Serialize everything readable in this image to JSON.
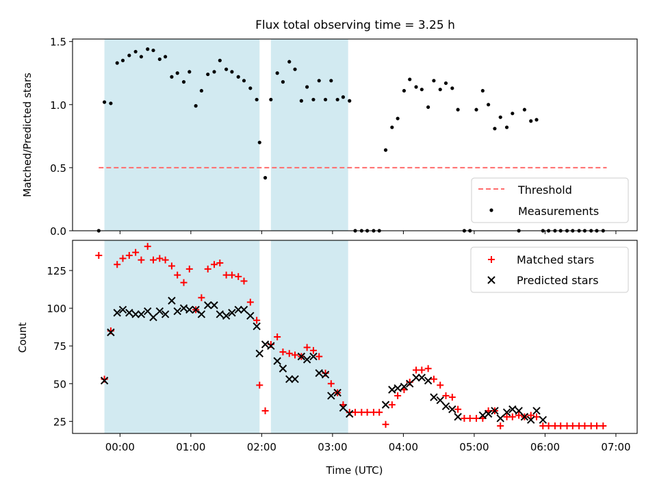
{
  "title": "Flux total observing time = 3.25 h",
  "colors": {
    "shade": "#add8e6",
    "threshold": "#ff6b6b",
    "matched": "#ff0000",
    "predicted": "#000000",
    "measurement": "#000000"
  },
  "chart_data": [
    {
      "type": "scatter",
      "ylabel": "Matched/Predicted stars",
      "xlim": [
        -0.67,
        7.3
      ],
      "ylim": [
        0,
        1.52
      ],
      "yticks": [
        0.0,
        0.5,
        1.0,
        1.5
      ],
      "ytick_labels": [
        "0.0",
        "0.5",
        "1.0",
        "1.5"
      ],
      "shaded_intervals": [
        [
          -0.22,
          1.97
        ],
        [
          2.13,
          3.22
        ]
      ],
      "threshold": {
        "name": "Threshold",
        "value": 0.5,
        "x_range": [
          -0.3,
          6.87
        ]
      },
      "legend": {
        "placement": "lower-right",
        "entries": [
          "Threshold",
          "Measurements"
        ]
      },
      "series": [
        {
          "name": "Measurements",
          "x": [
            -0.3,
            -0.22,
            -0.13,
            -0.04,
            0.04,
            0.13,
            0.22,
            0.3,
            0.39,
            0.47,
            0.56,
            0.64,
            0.73,
            0.81,
            0.9,
            0.98,
            1.07,
            1.15,
            1.24,
            1.33,
            1.41,
            1.5,
            1.58,
            1.67,
            1.75,
            1.84,
            1.93,
            1.97,
            2.05,
            2.13,
            2.22,
            2.3,
            2.39,
            2.47,
            2.56,
            2.64,
            2.73,
            2.81,
            2.9,
            2.98,
            3.07,
            3.15,
            3.24,
            3.32,
            3.41,
            3.49,
            3.58,
            3.66,
            3.75,
            3.84,
            3.92,
            4.01,
            4.09,
            4.18,
            4.26,
            4.35,
            4.43,
            4.52,
            4.6,
            4.69,
            4.77,
            4.86,
            4.94,
            5.03,
            5.12,
            5.2,
            5.29,
            5.37,
            5.46,
            5.54,
            5.63,
            5.71,
            5.8,
            5.88,
            5.97,
            6.05,
            6.14,
            6.22,
            6.31,
            6.39,
            6.48,
            6.56,
            6.65,
            6.73,
            6.82
          ],
          "values": [
            0.0,
            1.02,
            1.01,
            1.33,
            1.35,
            1.39,
            1.42,
            1.38,
            1.44,
            1.43,
            1.36,
            1.38,
            1.22,
            1.25,
            1.18,
            1.26,
            0.99,
            1.11,
            1.24,
            1.26,
            1.35,
            1.28,
            1.26,
            1.22,
            1.19,
            1.13,
            1.04,
            0.7,
            0.42,
            1.04,
            1.25,
            1.18,
            1.34,
            1.28,
            1.03,
            1.14,
            1.04,
            1.19,
            1.04,
            1.19,
            1.04,
            1.06,
            1.03,
            0.0,
            0.0,
            0.0,
            0.0,
            0.0,
            0.64,
            0.82,
            0.89,
            1.11,
            1.2,
            1.14,
            1.12,
            0.98,
            1.19,
            1.12,
            1.17,
            1.13,
            0.96,
            0.0,
            0.0,
            0.96,
            1.11,
            1.0,
            0.81,
            0.9,
            0.82,
            0.93,
            0.0,
            0.96,
            0.87,
            0.88,
            0.0,
            0.0,
            0.0,
            0.0,
            0.0,
            0.0,
            0.0,
            0.0,
            0.0,
            0.0,
            0.0
          ]
        }
      ]
    },
    {
      "type": "scatter",
      "xlabel": "Time (UTC)",
      "ylabel": "Count",
      "xlim": [
        -0.67,
        7.3
      ],
      "ylim": [
        17,
        145
      ],
      "yticks": [
        25,
        50,
        75,
        100,
        125
      ],
      "xtick_values": [
        0,
        1,
        2,
        3,
        4,
        5,
        6,
        7
      ],
      "xtick_labels": [
        "00:00",
        "01:00",
        "02:00",
        "03:00",
        "04:00",
        "05:00",
        "06:00",
        "07:00"
      ],
      "shaded_intervals": [
        [
          -0.22,
          1.97
        ],
        [
          2.13,
          3.22
        ]
      ],
      "legend": {
        "placement": "upper-right",
        "entries": [
          "Matched stars",
          "Predicted stars"
        ]
      },
      "series": [
        {
          "name": "Matched stars",
          "x": [
            -0.3,
            -0.22,
            -0.13,
            -0.04,
            0.04,
            0.13,
            0.22,
            0.3,
            0.39,
            0.47,
            0.56,
            0.64,
            0.73,
            0.81,
            0.9,
            0.98,
            1.07,
            1.15,
            1.24,
            1.33,
            1.41,
            1.5,
            1.58,
            1.67,
            1.75,
            1.84,
            1.93,
            1.97,
            2.05,
            2.13,
            2.22,
            2.3,
            2.39,
            2.47,
            2.56,
            2.64,
            2.73,
            2.81,
            2.9,
            2.98,
            3.07,
            3.15,
            3.24,
            3.32,
            3.41,
            3.49,
            3.58,
            3.66,
            3.75,
            3.84,
            3.92,
            4.01,
            4.09,
            4.18,
            4.26,
            4.35,
            4.43,
            4.52,
            4.6,
            4.69,
            4.77,
            4.86,
            4.94,
            5.03,
            5.12,
            5.2,
            5.29,
            5.37,
            5.46,
            5.54,
            5.63,
            5.71,
            5.8,
            5.88,
            5.97,
            6.05,
            6.14,
            6.22,
            6.31,
            6.39,
            6.48,
            6.56,
            6.65,
            6.73,
            6.82
          ],
          "values": [
            135,
            53,
            85,
            129,
            133,
            135,
            137,
            132,
            141,
            132,
            133,
            132,
            128,
            122,
            117,
            126,
            99,
            107,
            126,
            129,
            130,
            122,
            122,
            121,
            118,
            104,
            92,
            49,
            32,
            76,
            81,
            71,
            70,
            69,
            68,
            74,
            72,
            68,
            57,
            50,
            44,
            36,
            31,
            31,
            31,
            31,
            31,
            31,
            23,
            36,
            42,
            46,
            51,
            59,
            59,
            60,
            53,
            49,
            42,
            41,
            33,
            27,
            27,
            27,
            27,
            32,
            32,
            22,
            28,
            28,
            29,
            28,
            29,
            28,
            22,
            22,
            22,
            22,
            22,
            22,
            22,
            22,
            22,
            22,
            22
          ]
        },
        {
          "name": "Predicted stars",
          "x": [
            -0.22,
            -0.13,
            -0.04,
            0.04,
            0.13,
            0.22,
            0.3,
            0.39,
            0.47,
            0.56,
            0.64,
            0.73,
            0.81,
            0.9,
            0.98,
            1.07,
            1.15,
            1.24,
            1.33,
            1.41,
            1.5,
            1.58,
            1.67,
            1.75,
            1.84,
            1.93,
            1.97,
            2.05,
            2.13,
            2.22,
            2.3,
            2.39,
            2.47,
            2.56,
            2.64,
            2.73,
            2.81,
            2.9,
            2.98,
            3.07,
            3.15,
            3.24,
            3.75,
            3.84,
            3.92,
            4.01,
            4.09,
            4.18,
            4.26,
            4.35,
            4.43,
            4.52,
            4.6,
            4.69,
            4.77,
            5.12,
            5.2,
            5.29,
            5.37,
            5.46,
            5.54,
            5.63,
            5.71,
            5.8,
            5.88,
            5.97
          ],
          "values": [
            52,
            84,
            97,
            99,
            97,
            96,
            96,
            98,
            94,
            98,
            96,
            105,
            98,
            100,
            99,
            99,
            96,
            102,
            102,
            96,
            95,
            97,
            99,
            99,
            95,
            88,
            70,
            76,
            75,
            65,
            60,
            53,
            53,
            68,
            66,
            68,
            57,
            56,
            42,
            44,
            34,
            30,
            36,
            46,
            47,
            48,
            50,
            54,
            54,
            52,
            41,
            39,
            35,
            33,
            28,
            29,
            30,
            32,
            27,
            31,
            33,
            32,
            28,
            26,
            32,
            26
          ]
        }
      ]
    }
  ]
}
